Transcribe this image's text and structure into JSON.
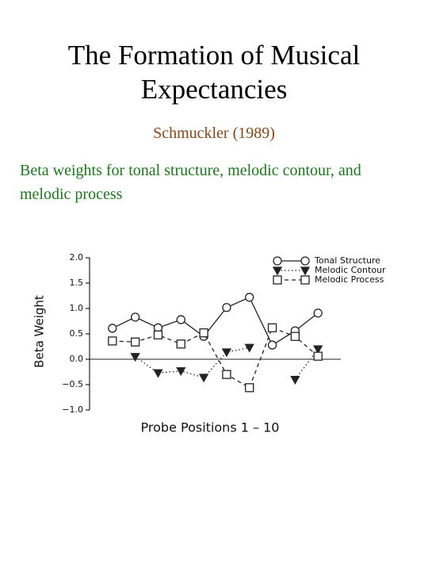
{
  "title": "The Formation of Musical Expectancies",
  "subtitle": "Schmuckler (1989)",
  "description": "Beta weights for tonal structure, melodic contour, and melodic process",
  "chart_data": {
    "type": "line",
    "ylabel": "Beta Weight",
    "xlabel": "Probe Positions 1 – 10",
    "x": [
      1,
      2,
      3,
      4,
      5,
      6,
      7,
      8,
      9,
      10
    ],
    "xlim": [
      0,
      11
    ],
    "ylim": [
      -1.0,
      2.0
    ],
    "yticks": [
      {
        "value": 2.0,
        "label": "2.0"
      },
      {
        "value": 1.5,
        "label": "1.5"
      },
      {
        "value": 1.0,
        "label": "1.0"
      },
      {
        "value": 0.5,
        "label": "0.5"
      },
      {
        "value": 0.0,
        "label": "0.0"
      },
      {
        "value": -0.5,
        "label": "−0.5"
      },
      {
        "value": -1.0,
        "label": "−1.0"
      }
    ],
    "legend": "upper right",
    "series": [
      {
        "name": "Tonal Structure",
        "color": "#222222",
        "marker": "circle",
        "dash": "solid",
        "values": [
          0.61,
          0.83,
          0.62,
          0.78,
          0.45,
          1.02,
          1.22,
          0.28,
          0.56,
          0.91
        ]
      },
      {
        "name": "Melodic Contour",
        "color": "#222222",
        "marker": "triangle-down",
        "dash": "dotted",
        "values": [
          null,
          0.05,
          -0.27,
          -0.23,
          -0.36,
          0.14,
          0.23,
          null,
          -0.4,
          0.2
        ]
      },
      {
        "name": "Melodic Process",
        "color": "#222222",
        "marker": "square",
        "dash": "dashed",
        "values": [
          0.36,
          0.34,
          0.48,
          0.3,
          0.52,
          -0.3,
          -0.56,
          0.62,
          0.45,
          0.06
        ]
      }
    ]
  }
}
